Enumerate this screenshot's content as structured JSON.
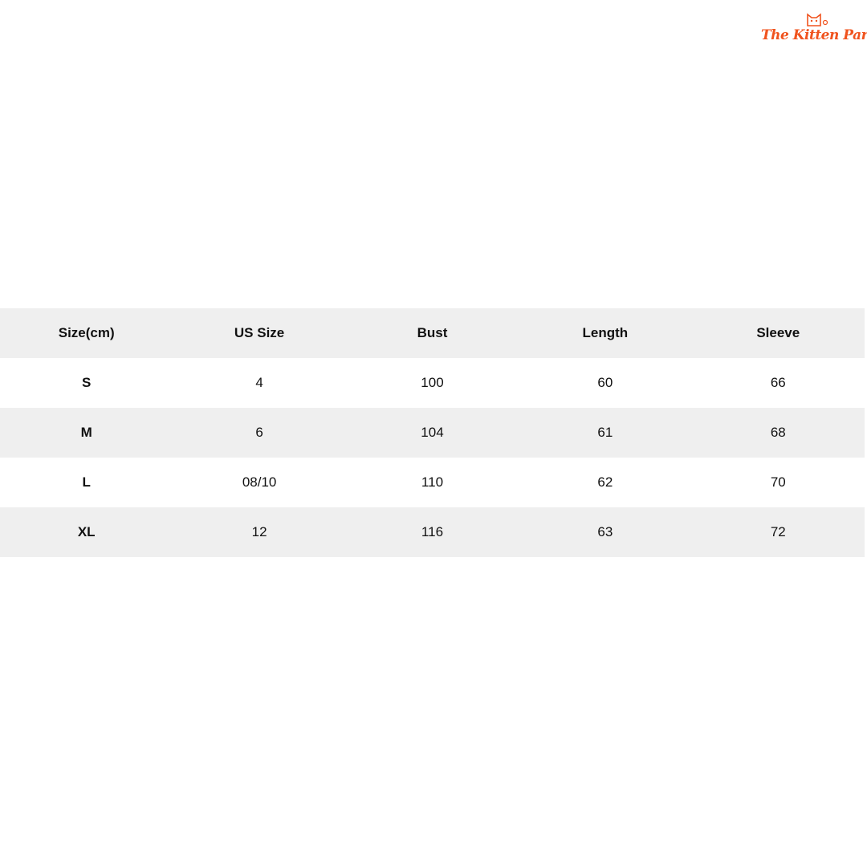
{
  "logo": {
    "text": "The Kitten Park"
  },
  "table": {
    "header": [
      "Size(cm)",
      "US Size",
      "Bust",
      "Length",
      "Sleeve"
    ],
    "rows": [
      [
        "S",
        "4",
        "100",
        "60",
        "66"
      ],
      [
        "M",
        "6",
        "104",
        "61",
        "68"
      ],
      [
        "L",
        "08/10",
        "110",
        "62",
        "70"
      ],
      [
        "XL",
        "12",
        "116",
        "63",
        "72"
      ]
    ]
  }
}
